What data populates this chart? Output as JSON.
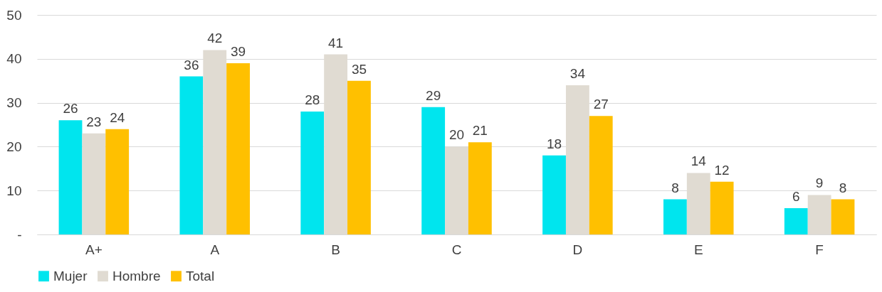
{
  "chart_data": {
    "type": "bar",
    "categories": [
      "A+",
      "A",
      "B",
      "C",
      "D",
      "E",
      "F"
    ],
    "series": [
      {
        "name": "Mujer",
        "color": "#00e5ee",
        "values": [
          26,
          36,
          28,
          29,
          18,
          8,
          6
        ]
      },
      {
        "name": "Hombre",
        "color": "#e0dbd2",
        "values": [
          23,
          42,
          41,
          20,
          34,
          14,
          9
        ]
      },
      {
        "name": "Total",
        "color": "#ffc000",
        "values": [
          24,
          39,
          35,
          21,
          27,
          12,
          8
        ]
      }
    ],
    "ylim": [
      0,
      50
    ],
    "yticks": [
      {
        "value": 0,
        "label": "-"
      },
      10,
      20,
      30,
      40,
      50
    ],
    "grid": "y",
    "legend": "bottom",
    "data_labels": true
  }
}
